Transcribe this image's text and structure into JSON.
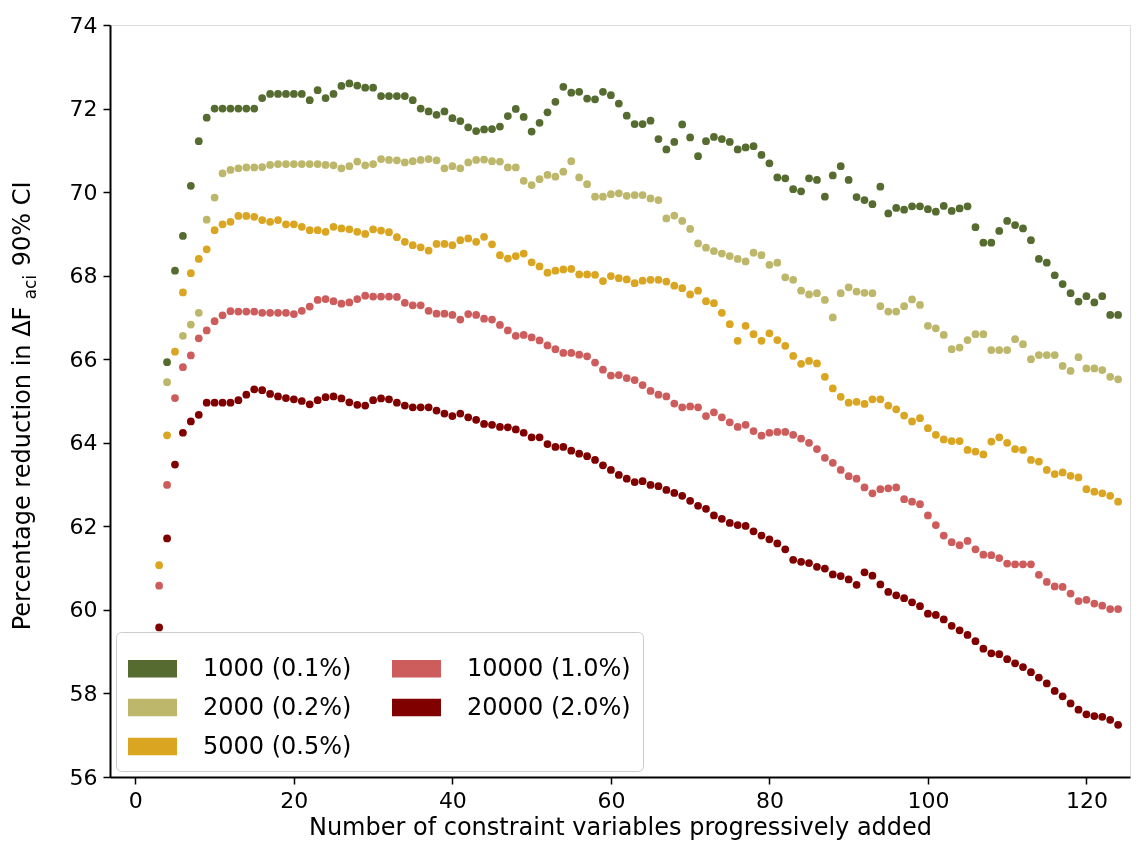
{
  "chart_data": {
    "type": "scatter",
    "xlabel": "Number of constraint variables progressively added",
    "ylabel": "Percentage reduction in ΔF$_{aci}$ 90% CI",
    "xlim": [
      -3.2,
      125.5
    ],
    "xticks": [
      0,
      20,
      40,
      60,
      80,
      100,
      120
    ],
    "ylim": [
      56,
      74
    ],
    "yticks": [
      56,
      58,
      60,
      62,
      64,
      66,
      68,
      70,
      72,
      74
    ],
    "grid": false,
    "legend": "bottom left",
    "marker": "circle",
    "x": [
      3,
      4,
      5,
      6,
      7,
      8,
      9,
      10,
      11,
      12,
      13,
      14,
      15,
      16,
      17,
      18,
      19,
      20,
      21,
      22,
      23,
      24,
      25,
      26,
      27,
      28,
      29,
      30,
      31,
      32,
      33,
      34,
      35,
      36,
      37,
      38,
      39,
      40,
      41,
      42,
      43,
      44,
      45,
      46,
      47,
      48,
      49,
      50,
      51,
      52,
      53,
      54,
      55,
      56,
      57,
      58,
      59,
      60,
      61,
      62,
      63,
      64,
      65,
      66,
      67,
      68,
      69,
      70,
      71,
      72,
      73,
      74,
      75,
      76,
      77,
      78,
      79,
      80,
      81,
      82,
      83,
      84,
      85,
      86,
      87,
      88,
      89,
      90,
      91,
      92,
      93,
      94,
      95,
      96,
      97,
      98,
      99,
      100,
      101,
      102,
      103,
      104,
      105,
      106,
      107,
      108,
      109,
      110,
      111,
      112,
      113,
      114,
      115,
      116,
      117,
      118,
      119,
      120,
      121,
      122,
      123,
      124
    ],
    "series": [
      {
        "name": "1000 (0.1%)",
        "color": "#556b2f",
        "values": [
          null,
          65.93,
          68.12,
          68.95,
          70.15,
          71.22,
          71.78,
          72.0,
          72.0,
          72.0,
          72.0,
          72.0,
          72.0,
          72.25,
          72.35,
          72.35,
          72.35,
          72.35,
          72.35,
          72.2,
          72.44,
          72.25,
          72.35,
          72.54,
          72.6,
          72.55,
          72.5,
          72.5,
          72.3,
          72.3,
          72.3,
          72.3,
          72.2,
          72.0,
          71.93,
          71.85,
          71.93,
          71.77,
          71.7,
          71.55,
          71.46,
          71.5,
          71.51,
          71.57,
          71.82,
          71.99,
          71.8,
          71.45,
          71.66,
          71.91,
          72.16,
          72.52,
          72.38,
          72.4,
          72.24,
          72.22,
          72.4,
          72.32,
          72.12,
          71.83,
          71.63,
          71.63,
          71.71,
          71.27,
          71.02,
          71.2,
          71.62,
          71.31,
          70.86,
          71.22,
          71.32,
          71.27,
          71.2,
          71.02,
          71.07,
          71.1,
          70.89,
          70.69,
          70.35,
          70.33,
          70.07,
          70.02,
          70.33,
          70.29,
          69.89,
          70.4,
          70.62,
          70.29,
          69.88,
          69.81,
          69.71,
          70.13,
          69.49,
          69.62,
          69.58,
          69.66,
          69.66,
          69.59,
          69.53,
          69.67,
          69.55,
          69.61,
          69.66,
          69.16,
          68.79,
          68.79,
          69.07,
          69.31,
          69.21,
          69.13,
          68.85,
          68.4,
          68.31,
          68.01,
          67.8,
          67.58,
          67.38,
          67.51,
          67.36,
          67.51,
          67.06,
          67.06
        ]
      },
      {
        "name": "2000 (0.2%)",
        "color": "#bdb76b",
        "values": [
          null,
          65.45,
          null,
          66.56,
          66.83,
          67.11,
          69.34,
          69.87,
          70.45,
          70.53,
          70.57,
          70.59,
          70.59,
          70.6,
          70.65,
          70.67,
          70.67,
          70.67,
          70.67,
          70.67,
          70.67,
          70.65,
          70.64,
          70.57,
          70.62,
          70.73,
          70.64,
          70.67,
          70.79,
          70.77,
          70.76,
          70.71,
          70.74,
          70.77,
          70.79,
          70.76,
          70.57,
          70.62,
          70.57,
          70.71,
          70.77,
          70.78,
          70.74,
          70.73,
          70.59,
          70.59,
          70.27,
          70.17,
          70.31,
          70.41,
          70.37,
          70.49,
          70.74,
          70.35,
          70.19,
          69.89,
          69.89,
          69.95,
          69.97,
          69.91,
          69.93,
          69.93,
          69.85,
          69.81,
          69.37,
          69.44,
          69.31,
          69.12,
          68.77,
          68.67,
          68.59,
          68.53,
          68.47,
          68.4,
          68.34,
          68.55,
          68.49,
          68.26,
          68.31,
          67.96,
          67.9,
          67.64,
          67.55,
          67.58,
          67.42,
          67.0,
          67.58,
          67.72,
          67.62,
          67.59,
          67.58,
          67.27,
          67.14,
          67.14,
          67.27,
          67.43,
          67.3,
          66.8,
          66.74,
          66.58,
          66.24,
          66.28,
          66.46,
          66.6,
          66.6,
          66.22,
          66.22,
          66.22,
          66.48,
          66.36,
          66.0,
          66.1,
          66.1,
          66.1,
          65.84,
          65.72,
          66.05,
          65.78,
          65.78,
          65.74,
          65.58,
          65.52
        ]
      },
      {
        "name": "5000 (0.5%)",
        "color": "#daa520",
        "values": [
          61.07,
          64.18,
          66.18,
          67.6,
          68.06,
          68.4,
          68.63,
          69.09,
          69.23,
          69.29,
          69.43,
          69.43,
          69.41,
          69.33,
          69.29,
          69.33,
          69.23,
          69.23,
          69.17,
          69.09,
          69.09,
          69.05,
          69.17,
          69.13,
          69.11,
          69.05,
          69.0,
          69.11,
          69.08,
          69.04,
          68.92,
          68.81,
          68.73,
          68.68,
          68.6,
          68.76,
          68.76,
          68.73,
          68.85,
          68.89,
          68.81,
          68.93,
          68.75,
          68.49,
          68.41,
          68.47,
          68.53,
          68.32,
          68.22,
          68.07,
          68.12,
          68.15,
          68.16,
          68.03,
          68.03,
          68.02,
          67.87,
          67.99,
          67.94,
          67.91,
          67.82,
          67.88,
          67.9,
          67.9,
          67.86,
          67.76,
          67.7,
          67.55,
          67.64,
          67.39,
          67.34,
          67.11,
          66.84,
          66.44,
          66.8,
          66.6,
          66.44,
          66.62,
          66.46,
          66.32,
          66.08,
          65.89,
          65.96,
          65.9,
          65.58,
          65.3,
          65.1,
          64.96,
          64.98,
          64.93,
          65.04,
          65.04,
          64.89,
          64.8,
          64.65,
          64.51,
          64.59,
          64.35,
          64.19,
          64.08,
          64.04,
          64.04,
          63.83,
          63.79,
          63.72,
          64.03,
          64.13,
          64.0,
          63.85,
          63.83,
          63.59,
          63.55,
          63.35,
          63.25,
          63.29,
          63.21,
          63.17,
          62.89,
          62.83,
          62.79,
          62.73,
          62.59
        ]
      },
      {
        "name": "10000 (1.0%)",
        "color": "#cd5c5c",
        "values": [
          60.58,
          62.99,
          65.07,
          65.81,
          66.09,
          66.5,
          66.69,
          66.91,
          67.05,
          67.15,
          67.14,
          67.14,
          67.14,
          67.11,
          67.11,
          67.11,
          67.11,
          67.08,
          67.16,
          67.26,
          67.42,
          67.44,
          67.39,
          67.33,
          67.36,
          67.44,
          67.52,
          67.5,
          67.5,
          67.5,
          67.49,
          67.35,
          67.29,
          67.29,
          67.16,
          67.09,
          67.09,
          67.06,
          66.95,
          67.08,
          67.06,
          66.97,
          66.95,
          66.82,
          66.69,
          66.56,
          66.58,
          66.52,
          66.45,
          66.33,
          66.24,
          66.15,
          66.15,
          66.11,
          66.07,
          65.92,
          65.75,
          65.61,
          65.62,
          65.55,
          65.5,
          65.38,
          65.24,
          65.15,
          65.11,
          64.94,
          64.85,
          64.87,
          64.85,
          64.64,
          64.73,
          64.61,
          64.49,
          64.38,
          64.43,
          64.28,
          64.17,
          64.24,
          64.26,
          64.26,
          64.19,
          64.1,
          64.0,
          63.85,
          63.64,
          63.52,
          63.35,
          63.2,
          63.14,
          62.93,
          62.79,
          62.89,
          62.91,
          62.93,
          62.65,
          62.59,
          62.53,
          62.26,
          62.03,
          61.78,
          61.62,
          61.55,
          61.65,
          61.45,
          61.32,
          61.31,
          61.24,
          61.11,
          61.09,
          61.09,
          61.09,
          60.84,
          60.67,
          60.56,
          60.55,
          60.39,
          60.21,
          60.24,
          60.15,
          60.1,
          60.02,
          60.02
        ]
      },
      {
        "name": "20000 (2.0%)",
        "color": "#800000",
        "values": [
          59.58,
          61.71,
          63.48,
          64.24,
          64.51,
          64.67,
          64.96,
          64.96,
          64.96,
          64.96,
          65.02,
          65.15,
          65.28,
          65.26,
          65.17,
          65.11,
          65.07,
          65.04,
          65.0,
          64.92,
          65.02,
          65.09,
          65.11,
          65.06,
          64.97,
          64.91,
          64.89,
          65.02,
          65.06,
          65.04,
          64.96,
          64.89,
          64.85,
          64.85,
          64.85,
          64.77,
          64.7,
          64.64,
          64.7,
          64.61,
          64.55,
          64.45,
          64.43,
          64.38,
          64.37,
          64.32,
          64.24,
          64.13,
          64.13,
          63.97,
          63.9,
          63.9,
          63.81,
          63.74,
          63.68,
          63.59,
          63.46,
          63.35,
          63.23,
          63.14,
          63.06,
          63.08,
          62.99,
          62.96,
          62.87,
          62.8,
          62.73,
          62.61,
          62.49,
          62.42,
          62.26,
          62.18,
          62.08,
          62.03,
          62.01,
          61.88,
          61.78,
          61.69,
          61.59,
          61.45,
          61.2,
          61.15,
          61.12,
          61.03,
          60.99,
          60.85,
          60.81,
          60.73,
          60.6,
          60.9,
          60.82,
          60.61,
          60.43,
          60.35,
          60.28,
          60.18,
          60.09,
          59.91,
          59.88,
          59.77,
          59.62,
          59.51,
          59.4,
          59.25,
          59.07,
          58.96,
          58.94,
          58.82,
          58.72,
          58.63,
          58.51,
          58.38,
          58.24,
          58.06,
          57.93,
          57.76,
          57.61,
          57.5,
          57.46,
          57.44,
          57.37,
          57.25
        ]
      }
    ]
  }
}
